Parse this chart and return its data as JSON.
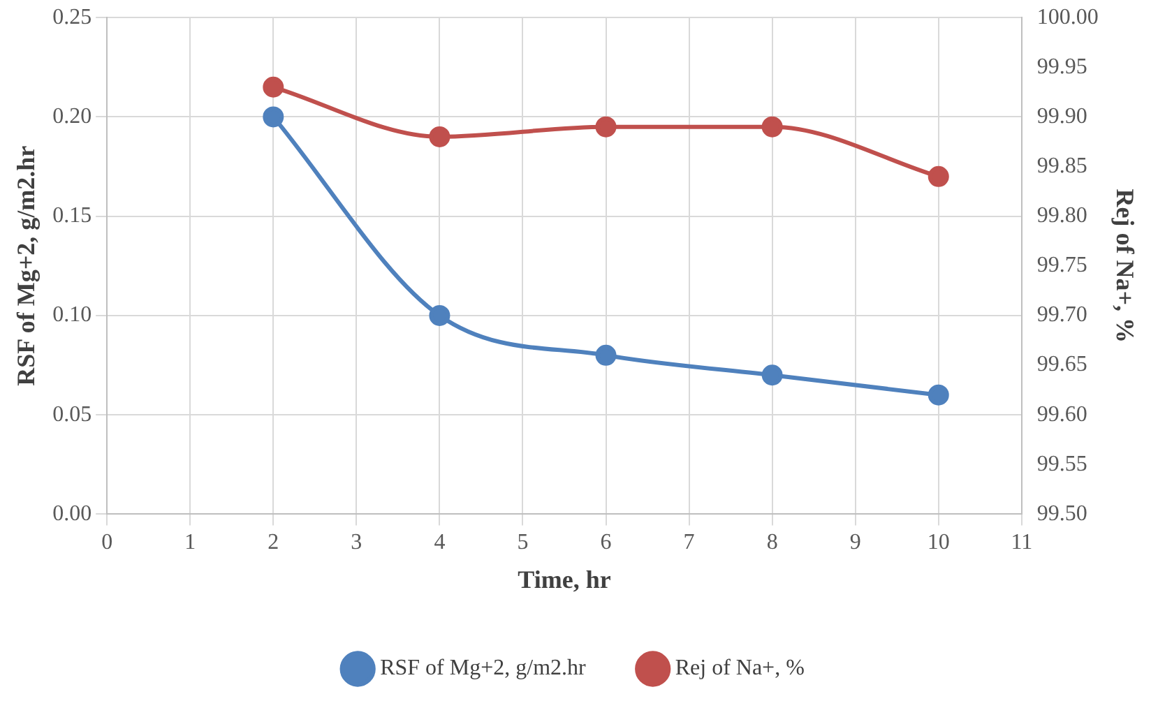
{
  "chart_data": {
    "type": "line",
    "xlabel": "Time, hr",
    "ylabel": "RSF of Mg+2, g/m2.hr",
    "y2label": "Rej of Na+, %",
    "x": [
      2,
      4,
      6,
      8,
      10
    ],
    "series": [
      {
        "name": "RSF of Mg+2, g/m2.hr",
        "color": "#4f81bd",
        "values": [
          0.2,
          0.1,
          0.08,
          0.07,
          0.06
        ]
      },
      {
        "name": "Rej of Na+, %",
        "color": "#c0504d",
        "values": [
          99.93,
          99.88,
          99.89,
          99.89,
          99.84
        ],
        "axis": "y2"
      }
    ],
    "xlim": [
      0,
      11
    ],
    "xticks": [
      0,
      1,
      2,
      3,
      4,
      5,
      6,
      7,
      8,
      9,
      10,
      11
    ],
    "ylim": [
      0,
      0.25
    ],
    "yticks": [
      {
        "value": 0,
        "label": "0.00"
      },
      {
        "value": 0.05,
        "label": "0.05"
      },
      {
        "value": 0.1,
        "label": "0.10"
      },
      {
        "value": 0.15,
        "label": "0.15"
      },
      {
        "value": 0.2,
        "label": "0.20"
      },
      {
        "value": 0.25,
        "label": "0.25"
      }
    ],
    "y2lim": [
      99.5,
      100
    ],
    "y2ticks": [
      {
        "value": 99.5,
        "label": "99.50"
      },
      {
        "value": 99.55,
        "label": "99.55"
      },
      {
        "value": 99.6,
        "label": "99.60"
      },
      {
        "value": 99.65,
        "label": "99.65"
      },
      {
        "value": 99.7,
        "label": "99.70"
      },
      {
        "value": 99.75,
        "label": "99.75"
      },
      {
        "value": 99.8,
        "label": "99.80"
      },
      {
        "value": 99.85,
        "label": "99.85"
      },
      {
        "value": 99.9,
        "label": "99.90"
      },
      {
        "value": 99.95,
        "label": "99.95"
      },
      {
        "value": 100,
        "label": "100.00"
      }
    ],
    "grid": true,
    "legend": "bottom",
    "marker": "circle",
    "line_style": "solid"
  }
}
